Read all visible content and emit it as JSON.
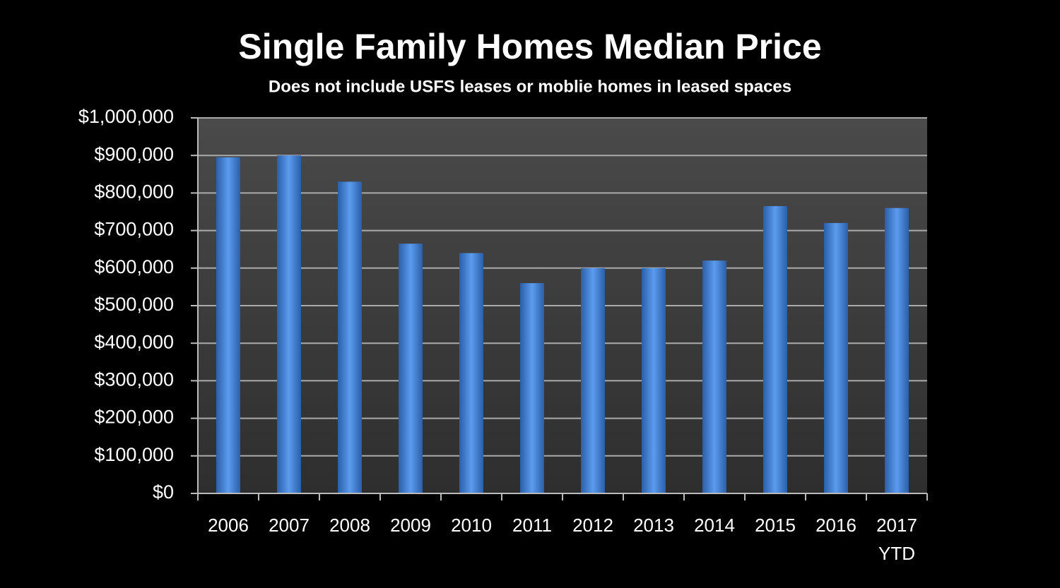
{
  "chart_data": {
    "type": "bar",
    "title": "Single Family Homes Median Price",
    "subtitle": "Does not include USFS leases or moblie homes in leased spaces",
    "categories": [
      "2006",
      "2007",
      "2008",
      "2009",
      "2010",
      "2011",
      "2012",
      "2013",
      "2014",
      "2015",
      "2016",
      "2017 YTD"
    ],
    "values": [
      895000,
      900000,
      830000,
      665000,
      640000,
      560000,
      600000,
      600000,
      620000,
      765000,
      720000,
      760000
    ],
    "color": "#4a86d8",
    "ylim": [
      0,
      1000000
    ],
    "yticks": [
      {
        "value": 0,
        "label": "$0"
      },
      {
        "value": 100000,
        "label": "$100,000"
      },
      {
        "value": 200000,
        "label": "$200,000"
      },
      {
        "value": 300000,
        "label": "$300,000"
      },
      {
        "value": 400000,
        "label": "$400,000"
      },
      {
        "value": 500000,
        "label": "$500,000"
      },
      {
        "value": 600000,
        "label": "$600,000"
      },
      {
        "value": 700000,
        "label": "$700,000"
      },
      {
        "value": 800000,
        "label": "$800,000"
      },
      {
        "value": 900000,
        "label": "$900,000"
      },
      {
        "value": 1000000,
        "label": "$1,000,000"
      }
    ],
    "grid": true
  }
}
